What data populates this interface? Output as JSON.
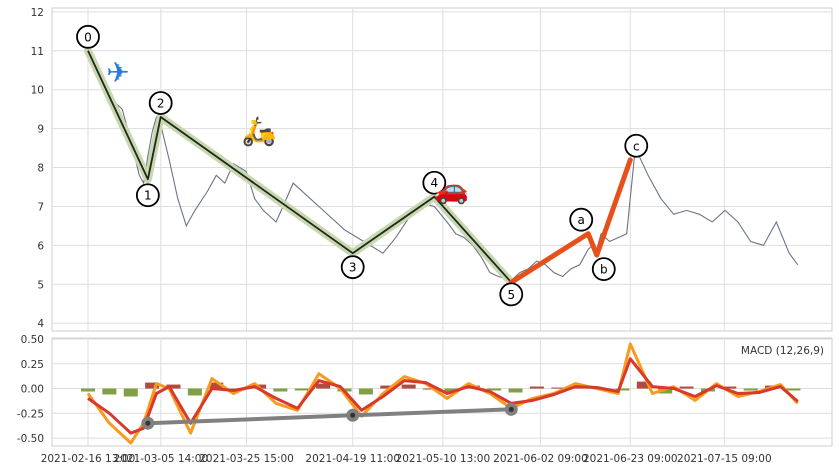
{
  "chart_data": [
    {
      "type": "line",
      "panel": "price",
      "title": "",
      "xlabel": "",
      "ylabel": "",
      "ylim": [
        3.8,
        12.1
      ],
      "yticks": [
        4,
        5,
        6,
        7,
        8,
        9,
        10,
        11,
        12
      ],
      "xlim": [
        "2021-02-16 13:00",
        "2021-08-02 13:00"
      ],
      "xticks": [
        "2021-02-16 13:00",
        "2021-03-05 14:00",
        "2021-03-25 15:00",
        "2021-04-19 11:00",
        "2021-05-10 13:00",
        "2021-06-02 09:00",
        "2021-06-23 09:00",
        "2021-07-15 09:00"
      ],
      "grid": true,
      "colors": {
        "price": "#6b7485",
        "wave_impulse": "#1a2a1a",
        "wave_impulse_halo": "#c9d6b0",
        "wave_correction": "#e5501b",
        "label_ring": "#000000"
      },
      "series": [
        {
          "x": [
            "2021-02-16 13:00",
            "2021-02-18 13:00",
            "2021-02-20 13:00",
            "2021-02-22 13:00",
            "2021-02-24 13:00",
            "2021-02-26 13:00",
            "2021-02-28 13:00",
            "2021-03-01 13:00",
            "2021-03-02 13:00",
            "2021-03-03 13:00",
            "2021-03-04 13:00",
            "2021-03-05 13:00",
            "2021-03-07 13:00",
            "2021-03-09 13:00",
            "2021-03-11 13:00",
            "2021-03-13 13:00",
            "2021-03-16 13:00",
            "2021-03-18 13:00",
            "2021-03-20 13:00",
            "2021-03-22 13:00",
            "2021-03-25 13:00",
            "2021-03-27 13:00",
            "2021-03-29 13:00",
            "2021-04-01 13:00",
            "2021-04-03 13:00",
            "2021-04-05 13:00",
            "2021-04-08 13:00",
            "2021-04-11 13:00",
            "2021-04-14 13:00",
            "2021-04-17 13:00",
            "2021-04-20 13:00",
            "2021-04-23 13:00",
            "2021-04-26 13:00",
            "2021-04-29 13:00",
            "2021-05-02 13:00",
            "2021-05-05 13:00",
            "2021-05-08 13:00",
            "2021-05-11 13:00",
            "2021-05-13 13:00",
            "2021-05-15 13:00",
            "2021-05-17 13:00",
            "2021-05-19 13:00",
            "2021-05-21 13:00",
            "2021-05-23 13:00",
            "2021-05-26 13:00",
            "2021-05-28 13:00",
            "2021-05-30 13:00",
            "2021-06-01 13:00",
            "2021-06-03 13:00",
            "2021-06-05 13:00",
            "2021-06-07 13:00",
            "2021-06-09 13:00",
            "2021-06-11 13:00",
            "2021-06-13 13:00",
            "2021-06-14 13:00",
            "2021-06-15 13:00",
            "2021-06-16 13:00",
            "2021-06-18 13:00",
            "2021-06-20 13:00",
            "2021-06-22 13:00",
            "2021-06-24 13:00",
            "2021-06-27 13:00",
            "2021-06-30 13:00",
            "2021-07-03 13:00",
            "2021-07-06 13:00",
            "2021-07-09 13:00",
            "2021-07-12 13:00",
            "2021-07-15 13:00",
            "2021-07-18 13:00",
            "2021-07-21 13:00",
            "2021-07-24 13:00",
            "2021-07-27 13:00",
            "2021-07-30 13:00",
            "2021-08-01 13:00"
          ],
          "values": [
            10.9,
            10.5,
            10.1,
            9.7,
            9.5,
            8.7,
            7.8,
            7.6,
            8.3,
            8.9,
            9.3,
            9.1,
            8.2,
            7.2,
            6.5,
            6.9,
            7.4,
            7.8,
            7.6,
            8.1,
            7.9,
            7.2,
            6.9,
            6.6,
            7.1,
            7.6,
            7.3,
            7.0,
            6.7,
            6.4,
            6.2,
            6.0,
            5.8,
            6.2,
            6.7,
            7.1,
            7.0,
            6.6,
            6.3,
            6.2,
            6.0,
            5.7,
            5.3,
            5.2,
            5.1,
            5.3,
            5.4,
            5.6,
            5.5,
            5.3,
            5.2,
            5.4,
            5.5,
            5.9,
            6.0,
            5.9,
            6.3,
            6.1,
            6.2,
            6.3,
            8.5,
            7.8,
            7.2,
            6.8,
            6.9,
            6.8,
            6.6,
            6.9,
            6.6,
            6.1,
            6.0,
            6.6,
            5.8,
            5.5
          ]
        }
      ],
      "wave_points": [
        {
          "label": "0",
          "x": "2021-02-16 13:00",
          "y": 11.0
        },
        {
          "label": "1",
          "x": "2021-03-02 13:00",
          "y": 7.7
        },
        {
          "label": "2",
          "x": "2021-03-05 13:00",
          "y": 9.3
        },
        {
          "label": "3",
          "x": "2021-04-19 11:00",
          "y": 5.8
        },
        {
          "label": "4",
          "x": "2021-05-08 13:00",
          "y": 7.25
        },
        {
          "label": "5",
          "x": "2021-05-26 13:00",
          "y": 5.05
        },
        {
          "label": "a",
          "x": "2021-06-13 13:00",
          "y": 6.3
        },
        {
          "label": "b",
          "x": "2021-06-15 13:00",
          "y": 5.75
        },
        {
          "label": "c",
          "x": "2021-06-23 09:00",
          "y": 8.2
        }
      ],
      "icons": [
        {
          "name": "airplane-icon",
          "glyph": "✈",
          "x": "2021-02-23 13:00",
          "y": 10.2
        },
        {
          "name": "scooter-icon",
          "glyph": "🛵",
          "x": "2021-03-28 13:00",
          "y": 8.7
        },
        {
          "name": "car-icon",
          "glyph": "🚗",
          "x": "2021-05-12 13:00",
          "y": 7.2
        }
      ]
    },
    {
      "type": "line",
      "panel": "macd",
      "title": "",
      "legend": "MACD (12,26,9)",
      "xlabel": "",
      "ylabel": "",
      "ylim": [
        -0.58,
        0.51
      ],
      "yticks": [
        0.5,
        0.25,
        0.0,
        -0.25,
        -0.5
      ],
      "ytick_labels": [
        "0.50",
        "0.25",
        "0.00",
        "-0.25",
        "-0.50"
      ],
      "grid": true,
      "colors": {
        "macd": "#f89a1e",
        "signal": "#d9392b",
        "hist_pos": "#a52a1e",
        "hist_neg": "#6b8e23",
        "divergence": "#808080"
      },
      "series": [
        {
          "x": [
            "2021-02-16 13:00",
            "2021-02-21 13:00",
            "2021-02-26 13:00",
            "2021-03-01 13:00",
            "2021-03-04 13:00",
            "2021-03-07 13:00",
            "2021-03-12 13:00",
            "2021-03-17 13:00",
            "2021-03-22 13:00",
            "2021-03-27 13:00",
            "2021-04-01 13:00",
            "2021-04-06 13:00",
            "2021-04-11 13:00",
            "2021-04-16 13:00",
            "2021-04-21 13:00",
            "2021-04-26 13:00",
            "2021-05-01 13:00",
            "2021-05-06 13:00",
            "2021-05-11 13:00",
            "2021-05-16 13:00",
            "2021-05-21 13:00",
            "2021-05-26 13:00",
            "2021-05-31 13:00",
            "2021-06-05 13:00",
            "2021-06-10 13:00",
            "2021-06-15 13:00",
            "2021-06-20 13:00",
            "2021-06-23 09:00",
            "2021-06-28 13:00",
            "2021-07-03 13:00",
            "2021-07-08 13:00",
            "2021-07-13 13:00",
            "2021-07-18 13:00",
            "2021-07-23 13:00",
            "2021-07-28 13:00",
            "2021-08-01 13:00"
          ],
          "values": [
            -0.05,
            -0.35,
            -0.55,
            -0.35,
            0.05,
            0.0,
            -0.45,
            0.1,
            -0.05,
            0.05,
            -0.15,
            -0.22,
            0.15,
            0.0,
            -0.28,
            -0.05,
            0.12,
            0.05,
            -0.1,
            0.05,
            -0.05,
            -0.2,
            -0.1,
            -0.05,
            0.05,
            0.0,
            -0.05,
            0.45,
            -0.05,
            0.02,
            -0.12,
            0.05,
            -0.08,
            -0.03,
            0.04,
            -0.15
          ]
        },
        {
          "x": [
            "2021-02-16 13:00",
            "2021-02-21 13:00",
            "2021-02-26 13:00",
            "2021-03-01 13:00",
            "2021-03-04 13:00",
            "2021-03-07 13:00",
            "2021-03-12 13:00",
            "2021-03-17 13:00",
            "2021-03-22 13:00",
            "2021-03-27 13:00",
            "2021-04-01 13:00",
            "2021-04-06 13:00",
            "2021-04-11 13:00",
            "2021-04-16 13:00",
            "2021-04-21 13:00",
            "2021-04-26 13:00",
            "2021-05-01 13:00",
            "2021-05-06 13:00",
            "2021-05-11 13:00",
            "2021-05-16 13:00",
            "2021-05-21 13:00",
            "2021-05-26 13:00",
            "2021-05-31 13:00",
            "2021-06-05 13:00",
            "2021-06-10 13:00",
            "2021-06-15 13:00",
            "2021-06-20 13:00",
            "2021-06-23 09:00",
            "2021-06-28 13:00",
            "2021-07-03 13:00",
            "2021-07-08 13:00",
            "2021-07-13 13:00",
            "2021-07-18 13:00",
            "2021-07-23 13:00",
            "2021-07-28 13:00",
            "2021-08-01 13:00"
          ],
          "values": [
            -0.1,
            -0.25,
            -0.45,
            -0.4,
            -0.05,
            0.02,
            -0.35,
            0.0,
            -0.02,
            0.02,
            -0.1,
            -0.2,
            0.08,
            0.02,
            -0.22,
            -0.08,
            0.08,
            0.06,
            -0.05,
            0.02,
            -0.03,
            -0.15,
            -0.12,
            -0.06,
            0.02,
            0.01,
            -0.03,
            0.3,
            0.02,
            0.0,
            -0.08,
            0.03,
            -0.05,
            -0.04,
            0.02,
            -0.13
          ]
        }
      ],
      "histogram": {
        "x": [
          "2021-02-16 13:00",
          "2021-02-21 13:00",
          "2021-02-26 13:00",
          "2021-03-03 13:00",
          "2021-03-08 13:00",
          "2021-03-13 13:00",
          "2021-03-18 13:00",
          "2021-03-23 13:00",
          "2021-03-28 13:00",
          "2021-04-02 13:00",
          "2021-04-07 13:00",
          "2021-04-12 13:00",
          "2021-04-17 13:00",
          "2021-04-22 13:00",
          "2021-04-27 13:00",
          "2021-05-02 13:00",
          "2021-05-07 13:00",
          "2021-05-12 13:00",
          "2021-05-17 13:00",
          "2021-05-22 13:00",
          "2021-05-27 13:00",
          "2021-06-01 13:00",
          "2021-06-06 13:00",
          "2021-06-11 13:00",
          "2021-06-16 13:00",
          "2021-06-21 13:00",
          "2021-06-26 13:00",
          "2021-07-01 13:00",
          "2021-07-06 13:00",
          "2021-07-11 13:00",
          "2021-07-16 13:00",
          "2021-07-21 13:00",
          "2021-07-26 13:00",
          "2021-07-31 13:00"
        ],
        "values": [
          -0.03,
          -0.06,
          -0.08,
          0.06,
          0.04,
          -0.07,
          0.06,
          -0.02,
          0.04,
          -0.03,
          -0.02,
          0.05,
          -0.03,
          -0.06,
          0.03,
          0.04,
          0.0,
          -0.04,
          0.03,
          -0.02,
          -0.04,
          0.02,
          0.01,
          0.03,
          -0.01,
          -0.02,
          0.07,
          -0.05,
          0.02,
          -0.03,
          0.02,
          -0.02,
          0.03,
          -0.02
        ]
      },
      "divergence_points": [
        {
          "x": "2021-03-02 13:00",
          "y": -0.35
        },
        {
          "x": "2021-04-19 11:00",
          "y": -0.27
        },
        {
          "x": "2021-05-26 13:00",
          "y": -0.21
        }
      ]
    }
  ],
  "xaxis": {
    "tick_labels": [
      "2021-02-16 13:00",
      "2021-03-05 14:00",
      "2021-03-25 15:00",
      "2021-04-19 11:00",
      "2021-05-10 13:00",
      "2021-06-02 09:00",
      "2021-06-23 09:00",
      "2021-07-15 09:00"
    ]
  }
}
